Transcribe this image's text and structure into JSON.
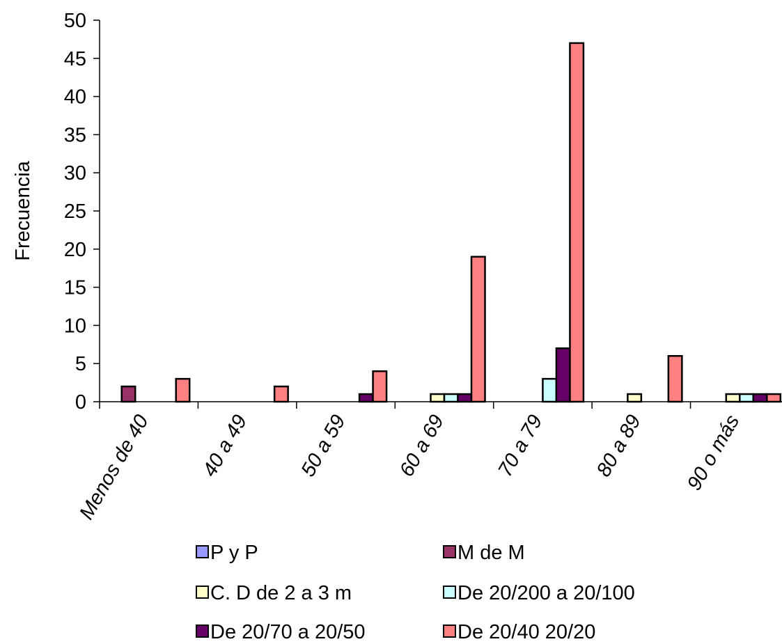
{
  "chart_data": {
    "type": "bar",
    "title": "",
    "xlabel": "",
    "ylabel": "Frecuencia",
    "ylim": [
      0,
      50
    ],
    "yticks": [
      0,
      5,
      10,
      15,
      20,
      25,
      30,
      35,
      40,
      45,
      50
    ],
    "grid": false,
    "legend_position": "bottom",
    "categories": [
      "Menos de 40",
      "40 a 49",
      "50 a 59",
      "60 a 69",
      "70 a 79",
      "80 a 89",
      "90 o más"
    ],
    "series": [
      {
        "name": "P  y  P",
        "color": "#9999ff",
        "values": [
          0,
          0,
          0,
          0,
          0,
          0,
          0
        ]
      },
      {
        "name": "M de M",
        "color": "#993366",
        "values": [
          2,
          0,
          0,
          0,
          0,
          0,
          0
        ]
      },
      {
        "name": "C. D de 2 a 3 m",
        "color": "#ffffcc",
        "values": [
          0,
          0,
          0,
          1,
          0,
          1,
          1
        ]
      },
      {
        "name": "De 20/200 a 20/100",
        "color": "#ccffff",
        "values": [
          0,
          0,
          0,
          1,
          3,
          0,
          1
        ]
      },
      {
        "name": "De 20/70 a 20/50",
        "color": "#660066",
        "values": [
          0,
          0,
          1,
          1,
          7,
          0,
          1
        ]
      },
      {
        "name": "De 20/40 20/20",
        "color": "#ff8080",
        "values": [
          3,
          2,
          4,
          19,
          47,
          6,
          1
        ]
      }
    ]
  }
}
